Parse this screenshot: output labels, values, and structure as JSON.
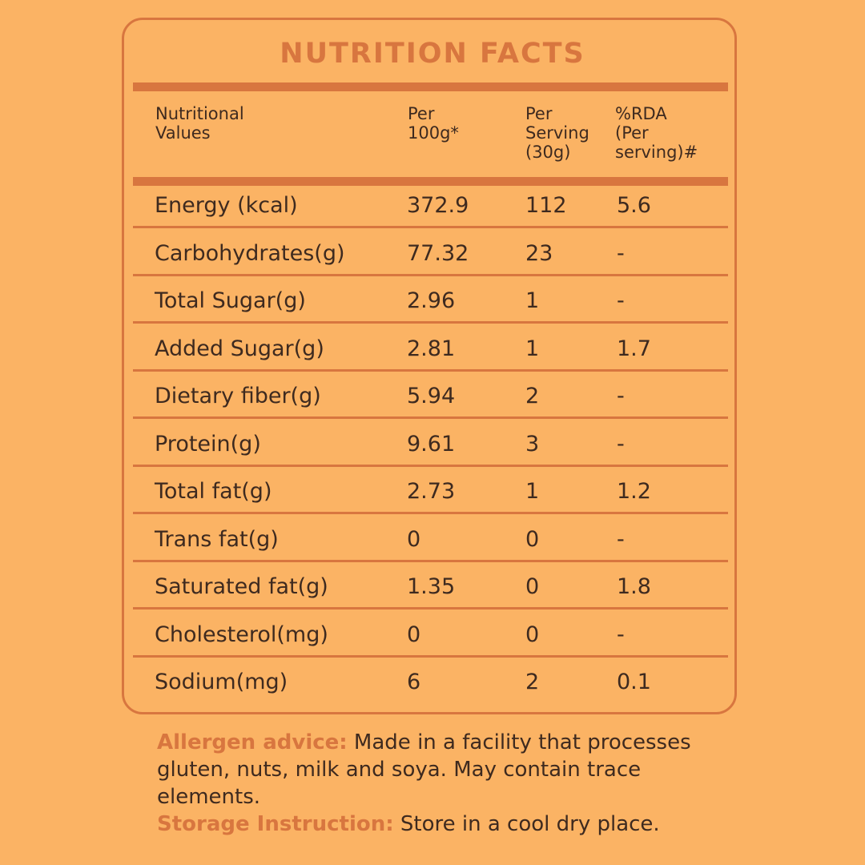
{
  "title": "NUTRITION FACTS",
  "header": {
    "col1": "Nutritional\nValues",
    "col2": "Per\n100g*",
    "col3": "Per\nServing\n(30g)",
    "col4": "%RDA\n(Per\n serving)#"
  },
  "rows": [
    {
      "name": "Energy (kcal)",
      "per100": "372.9",
      "perServing": "112",
      "rda": "5.6"
    },
    {
      "name": "Carbohydrates(g)",
      "per100": "77.32",
      "perServing": "23",
      "rda": "-"
    },
    {
      "name": "Total Sugar(g)",
      "per100": "2.96",
      "perServing": "1",
      "rda": "-"
    },
    {
      "name": "Added Sugar(g)",
      "per100": "2.81",
      "perServing": "1",
      "rda": "1.7"
    },
    {
      "name": "Dietary fiber(g)",
      "per100": "5.94",
      "perServing": "2",
      "rda": "-"
    },
    {
      "name": "Protein(g)",
      "per100": "9.61",
      "perServing": "3",
      "rda": "-"
    },
    {
      "name": "Total fat(g)",
      "per100": "2.73",
      "perServing": "1",
      "rda": "1.2"
    },
    {
      "name": "Trans fat(g)",
      "per100": "0",
      "perServing": "0",
      "rda": "-"
    },
    {
      "name": "Saturated fat(g)",
      "per100": "1.35",
      "perServing": "0",
      "rda": "1.8"
    },
    {
      "name": "Cholesterol(mg)",
      "per100": "0",
      "perServing": "0",
      "rda": "-"
    },
    {
      "name": "Sodium(mg)",
      "per100": "6",
      "perServing": "2",
      "rda": "0.1"
    }
  ],
  "notes": {
    "allergen_label": "Allergen advice:",
    "allergen_text": " Made in a facility that processes gluten, nuts, milk and soya. May contain trace elements.",
    "storage_label": "Storage Instruction:",
    "storage_text": " Store in a cool dry place."
  },
  "colors": {
    "background": "#fbb364",
    "accent": "#d8763f",
    "text": "#3e2a1f"
  }
}
